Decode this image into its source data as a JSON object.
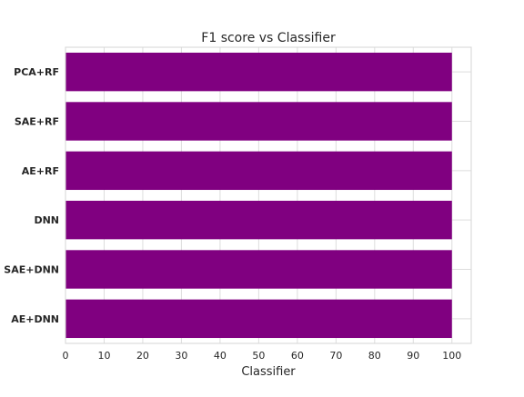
{
  "chart_data": {
    "type": "bar",
    "orientation": "horizontal",
    "title": "F1 score vs Classifier",
    "xlabel": "Classifier",
    "ylabel": "",
    "categories": [
      "PCA+RF",
      "SAE+RF",
      "AE+RF",
      "DNN",
      "SAE+DNN",
      "AE+DNN"
    ],
    "values": [
      100,
      100,
      100,
      100,
      100,
      100
    ],
    "xlim": [
      0,
      105
    ],
    "xticks": [
      0,
      10,
      20,
      30,
      40,
      50,
      60,
      70,
      80,
      90,
      100
    ],
    "grid": true,
    "bar_color": "#800080"
  }
}
